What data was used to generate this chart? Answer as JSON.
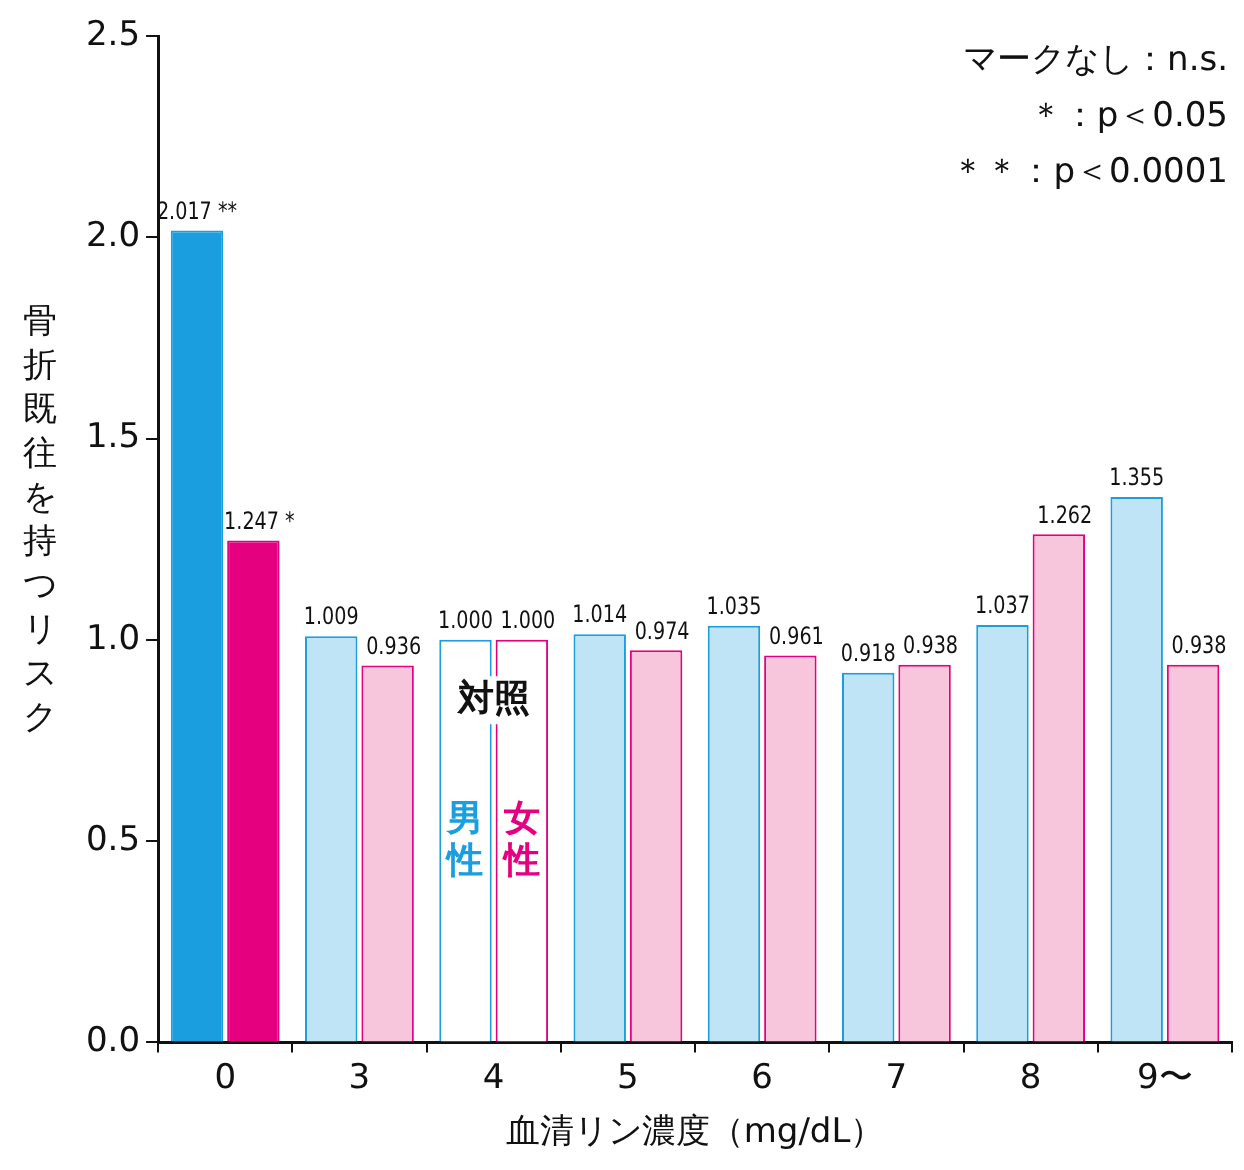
{
  "chart_data": {
    "type": "bar",
    "xlabel": "血清リン濃度（mg/dL）",
    "ylabel": "骨折既往を持つリスク",
    "categories": [
      "0",
      "3",
      "4",
      "5",
      "6",
      "7",
      "8",
      "9〜"
    ],
    "series": [
      {
        "name": "男性",
        "color": "#1a9ee0",
        "colors": [
          "#1a9ee0",
          "#bfe4f6",
          "#ffffff",
          "#bfe4f6",
          "#bfe4f6",
          "#bfe4f6",
          "#bfe4f6",
          "#bfe4f6"
        ],
        "values": [
          2.017,
          1.009,
          1.0,
          1.014,
          1.035,
          0.918,
          1.037,
          1.355
        ],
        "value_labels": [
          "2.017 **",
          "1.009",
          "1.000",
          "1.014",
          "1.035",
          "0.918",
          "1.037",
          "1.355"
        ]
      },
      {
        "name": "女性",
        "color": "#e4007f",
        "colors": [
          "#e4007f",
          "#f7c6dc",
          "#ffffff",
          "#f7c6dc",
          "#f7c6dc",
          "#f7c6dc",
          "#f7c6dc",
          "#f7c6dc"
        ],
        "values": [
          1.247,
          0.936,
          1.0,
          0.974,
          0.961,
          0.938,
          1.262,
          0.938
        ],
        "value_labels": [
          "1.247 *",
          "0.936",
          "1.000",
          "0.974",
          "0.961",
          "0.938",
          "1.262",
          "0.938"
        ]
      }
    ],
    "ylim": [
      0,
      2.5
    ],
    "yticks": [
      {
        "value": 0,
        "label": "0.0"
      },
      0.5,
      {
        "value": 1,
        "label": "1.0"
      },
      1.5,
      {
        "value": 2,
        "label": "2.0"
      },
      2.5
    ],
    "grid": false,
    "legend": false,
    "annotations": [
      "マークなし：n.s.",
      "＊：p＜0.05",
      "＊＊：p＜0.0001",
      "対照"
    ]
  }
}
